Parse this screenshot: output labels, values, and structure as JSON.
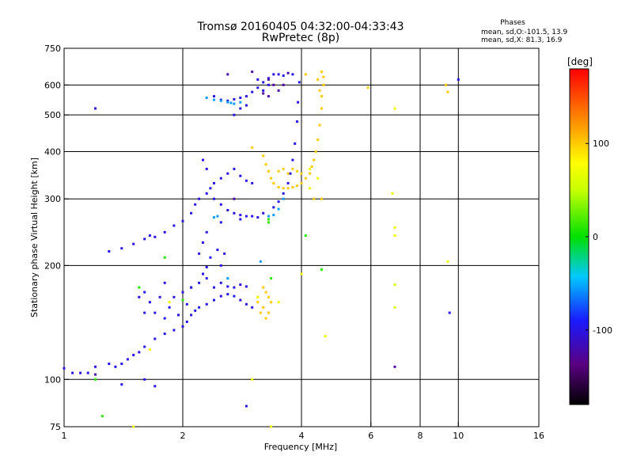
{
  "chart_data": {
    "type": "scatter",
    "title": "Tromsø 20160405 04:32:00-04:33:43",
    "subtitle": "RwPretec (8p)",
    "xlabel": "Frequency [MHz]",
    "ylabel": "Stationary phase Virtual Height [km]",
    "x_scale": "log",
    "y_scale": "log",
    "xlim": [
      1,
      16
    ],
    "ylim": [
      75,
      750
    ],
    "x_ticks": [
      1,
      2,
      4,
      6,
      8,
      10,
      16
    ],
    "y_ticks": [
      75,
      100,
      200,
      300,
      400,
      500,
      600,
      750
    ],
    "x_gridlines": [
      2,
      4,
      6,
      8,
      10
    ],
    "y_gridlines": [
      100,
      200,
      300,
      400,
      500,
      600
    ],
    "phase_stats": {
      "title": "Phases",
      "line1": "mean, sd,O:-101.5, 13.9",
      "line2": "mean, sd,X:  81.3, 16.9"
    },
    "colorbar": {
      "label": "[deg]",
      "range": [
        -180,
        180
      ],
      "ticks": [
        100,
        0,
        -100
      ]
    },
    "series": [
      {
        "phase": -100,
        "points": [
          [
            1.0,
            107
          ],
          [
            1.05,
            104
          ],
          [
            1.1,
            104
          ],
          [
            1.15,
            104
          ],
          [
            1.2,
            108
          ],
          [
            1.3,
            110
          ],
          [
            1.35,
            108
          ],
          [
            1.4,
            110
          ],
          [
            1.45,
            113
          ],
          [
            1.5,
            116
          ],
          [
            1.55,
            118
          ],
          [
            1.6,
            122
          ],
          [
            1.7,
            128
          ],
          [
            1.8,
            132
          ],
          [
            1.9,
            135
          ],
          [
            2.0,
            138
          ],
          [
            2.05,
            142
          ],
          [
            2.1,
            148
          ],
          [
            2.15,
            152
          ],
          [
            2.2,
            155
          ],
          [
            2.3,
            158
          ],
          [
            2.4,
            162
          ],
          [
            2.5,
            166
          ],
          [
            2.6,
            168
          ],
          [
            2.7,
            166
          ],
          [
            2.8,
            162
          ],
          [
            2.9,
            158
          ],
          [
            3.0,
            155
          ],
          [
            1.6,
            150
          ],
          [
            1.65,
            160
          ],
          [
            1.7,
            150
          ],
          [
            1.8,
            145
          ],
          [
            1.85,
            155
          ],
          [
            1.9,
            165
          ],
          [
            2.0,
            170
          ],
          [
            2.1,
            175
          ],
          [
            2.2,
            180
          ],
          [
            2.3,
            185
          ],
          [
            2.4,
            175
          ],
          [
            2.5,
            180
          ],
          [
            2.6,
            176
          ],
          [
            2.7,
            175
          ],
          [
            2.8,
            178
          ],
          [
            2.9,
            176
          ],
          [
            1.55,
            165
          ],
          [
            1.6,
            170
          ],
          [
            2.25,
            190
          ],
          [
            2.3,
            198
          ],
          [
            2.35,
            210
          ],
          [
            2.45,
            220
          ],
          [
            1.3,
            218
          ],
          [
            1.4,
            222
          ],
          [
            1.5,
            228
          ],
          [
            1.6,
            235
          ],
          [
            1.65,
            240
          ],
          [
            1.7,
            238
          ],
          [
            1.8,
            245
          ],
          [
            1.9,
            255
          ],
          [
            2.0,
            262
          ],
          [
            2.1,
            275
          ],
          [
            2.15,
            290
          ],
          [
            2.2,
            300
          ],
          [
            2.3,
            310
          ],
          [
            2.35,
            320
          ],
          [
            2.4,
            330
          ],
          [
            2.5,
            340
          ],
          [
            2.6,
            350
          ],
          [
            2.7,
            360
          ],
          [
            2.8,
            345
          ],
          [
            2.9,
            335
          ],
          [
            3.0,
            330
          ],
          [
            2.4,
            300
          ],
          [
            2.5,
            290
          ],
          [
            2.6,
            280
          ],
          [
            2.7,
            275
          ],
          [
            2.8,
            272
          ],
          [
            2.9,
            270
          ],
          [
            3.0,
            270
          ],
          [
            3.2,
            275
          ],
          [
            3.4,
            285
          ],
          [
            3.5,
            295
          ],
          [
            3.6,
            310
          ],
          [
            3.7,
            330
          ],
          [
            3.75,
            350
          ],
          [
            3.8,
            380
          ],
          [
            3.85,
            420
          ],
          [
            3.9,
            480
          ],
          [
            3.92,
            540
          ],
          [
            3.95,
            610
          ],
          [
            3.8,
            640
          ],
          [
            2.4,
            560
          ],
          [
            2.5,
            548
          ],
          [
            2.6,
            545
          ],
          [
            2.7,
            550
          ],
          [
            2.8,
            555
          ],
          [
            2.9,
            560
          ],
          [
            3.0,
            575
          ],
          [
            3.1,
            590
          ],
          [
            3.2,
            610
          ],
          [
            3.3,
            625
          ],
          [
            3.4,
            640
          ],
          [
            3.5,
            640
          ],
          [
            3.6,
            635
          ],
          [
            3.2,
            580
          ],
          [
            3.3,
            600
          ],
          [
            3.1,
            620
          ],
          [
            2.8,
            520
          ],
          [
            2.7,
            500
          ],
          [
            2.9,
            530
          ],
          [
            2.3,
            245
          ],
          [
            2.25,
            230
          ],
          [
            2.2,
            215
          ],
          [
            2.25,
            380
          ],
          [
            2.3,
            360
          ],
          [
            2.5,
            260
          ],
          [
            2.8,
            265
          ],
          [
            3.1,
            268
          ],
          [
            1.4,
            97
          ],
          [
            1.6,
            100
          ],
          [
            1.7,
            96
          ],
          [
            2.5,
            200
          ],
          [
            2.55,
            215
          ],
          [
            9.5,
            150
          ],
          [
            10.0,
            620
          ],
          [
            2.9,
            85
          ],
          [
            1.2,
            520
          ],
          [
            2.1,
            175
          ],
          [
            1.8,
            180
          ],
          [
            1.75,
            165
          ],
          [
            2.05,
            158
          ],
          [
            1.95,
            148
          ]
        ]
      },
      {
        "phase": -125,
        "points": [
          [
            3.3,
            620
          ],
          [
            3.4,
            600
          ],
          [
            3.5,
            580
          ],
          [
            3.3,
            560
          ],
          [
            3.2,
            570
          ],
          [
            3.6,
            600
          ],
          [
            2.6,
            640
          ],
          [
            3.0,
            650
          ],
          [
            3.7,
            645
          ],
          [
            6.9,
            108
          ],
          [
            1.2,
            103
          ],
          [
            2.7,
            300
          ]
        ]
      },
      {
        "phase": -55,
        "points": [
          [
            2.6,
            540
          ],
          [
            2.7,
            535
          ],
          [
            2.5,
            545
          ],
          [
            2.4,
            548
          ],
          [
            2.8,
            540
          ],
          [
            2.65,
            538
          ],
          [
            2.3,
            555
          ],
          [
            3.4,
            272
          ],
          [
            3.5,
            282
          ],
          [
            3.6,
            300
          ],
          [
            3.3,
            270
          ],
          [
            2.4,
            268
          ],
          [
            2.45,
            270
          ],
          [
            3.15,
            205
          ],
          [
            2.6,
            185
          ]
        ]
      },
      {
        "phase": 100,
        "points": [
          [
            3.2,
            390
          ],
          [
            3.25,
            370
          ],
          [
            3.3,
            355
          ],
          [
            3.35,
            340
          ],
          [
            3.4,
            330
          ],
          [
            3.5,
            322
          ],
          [
            3.6,
            320
          ],
          [
            3.7,
            320
          ],
          [
            3.8,
            322
          ],
          [
            3.9,
            325
          ],
          [
            4.0,
            330
          ],
          [
            4.1,
            340
          ],
          [
            4.2,
            350
          ],
          [
            4.25,
            365
          ],
          [
            4.3,
            380
          ],
          [
            4.35,
            400
          ],
          [
            4.4,
            430
          ],
          [
            4.45,
            470
          ],
          [
            4.5,
            520
          ],
          [
            4.5,
            560
          ],
          [
            4.55,
            600
          ],
          [
            4.55,
            630
          ],
          [
            4.5,
            650
          ],
          [
            4.4,
            620
          ],
          [
            4.45,
            580
          ],
          [
            3.5,
            355
          ],
          [
            3.6,
            360
          ],
          [
            3.7,
            350
          ],
          [
            3.8,
            360
          ],
          [
            3.9,
            355
          ],
          [
            4.0,
            350
          ],
          [
            3.2,
            175
          ],
          [
            3.25,
            170
          ],
          [
            3.3,
            165
          ],
          [
            3.35,
            160
          ],
          [
            3.1,
            160
          ],
          [
            3.2,
            155
          ],
          [
            3.15,
            150
          ],
          [
            3.3,
            150
          ],
          [
            3.25,
            145
          ],
          [
            3.1,
            165
          ],
          [
            3.0,
            410
          ],
          [
            5.9,
            590
          ],
          [
            9.3,
            600
          ],
          [
            9.4,
            575
          ],
          [
            4.5,
            520
          ],
          [
            4.5,
            300
          ],
          [
            4.1,
            640
          ],
          [
            4.3,
            300
          ]
        ]
      },
      {
        "phase": 70,
        "points": [
          [
            3.1,
            165
          ],
          [
            4.2,
            320
          ],
          [
            6.9,
            520
          ],
          [
            6.8,
            310
          ],
          [
            6.9,
            252
          ],
          [
            6.9,
            240
          ],
          [
            9.4,
            205
          ],
          [
            4.6,
            130
          ],
          [
            3.5,
            160
          ],
          [
            1.65,
            120
          ],
          [
            3.0,
            100
          ],
          [
            1.5,
            75
          ],
          [
            3.35,
            75
          ],
          [
            4.4,
            340
          ],
          [
            4.2,
            360
          ],
          [
            1.85,
            160
          ],
          [
            4.0,
            190
          ]
        ]
      },
      {
        "phase": 10,
        "points": [
          [
            1.8,
            210
          ],
          [
            3.3,
            260
          ],
          [
            1.55,
            175
          ],
          [
            1.25,
            80
          ],
          [
            1.2,
            100
          ],
          [
            2.0,
            162
          ],
          [
            4.5,
            195
          ],
          [
            4.1,
            240
          ],
          [
            3.35,
            185
          ],
          [
            3.3,
            265
          ]
        ]
      },
      {
        "phase": 60,
        "points": [
          [
            6.9,
            178
          ],
          [
            6.9,
            155
          ]
        ]
      }
    ]
  }
}
